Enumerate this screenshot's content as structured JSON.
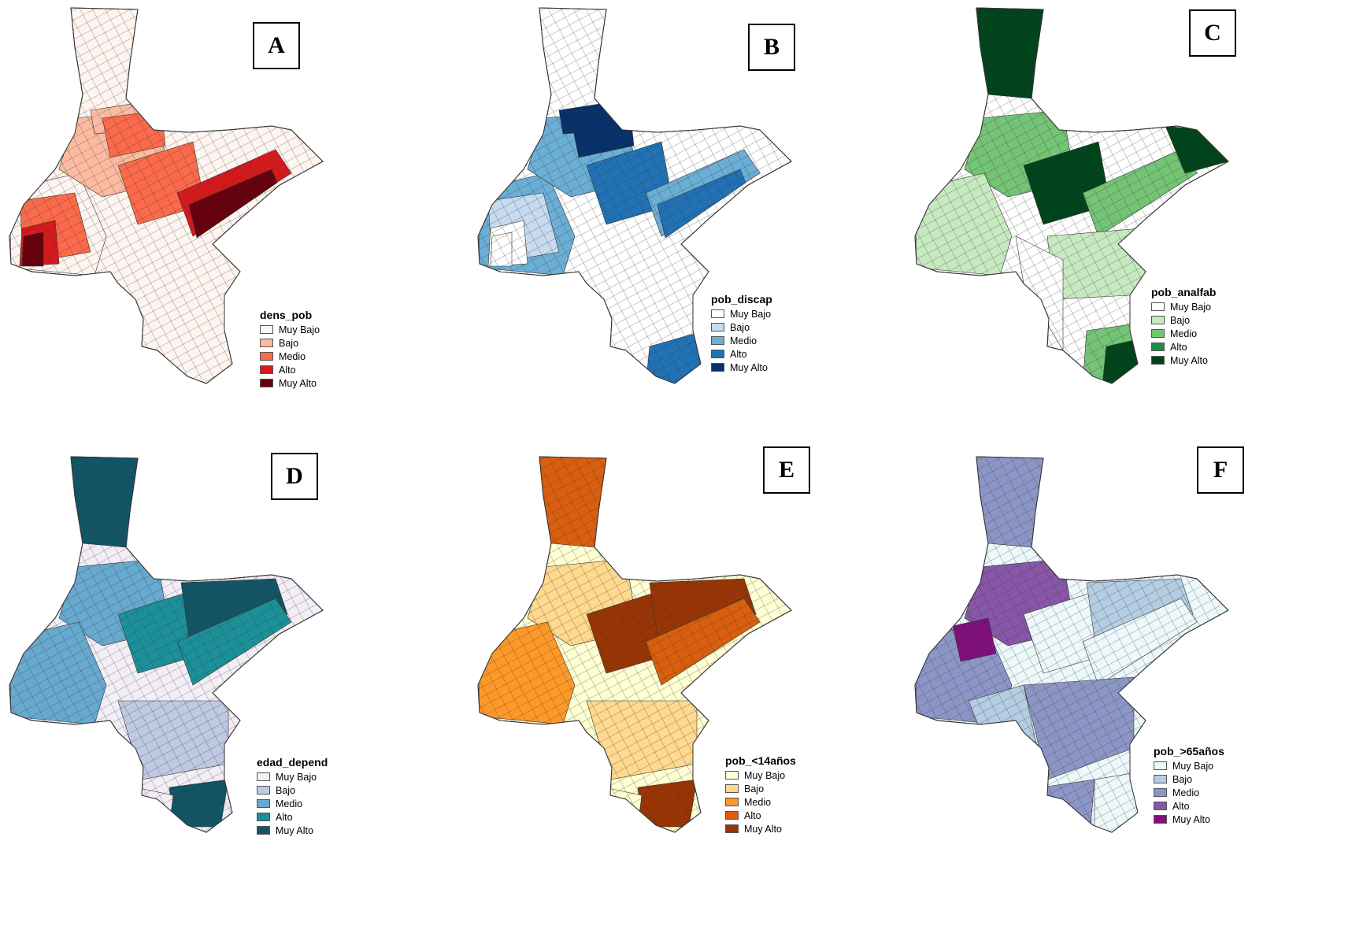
{
  "panels": [
    {
      "letter": "A",
      "legend_title": "dens_pob",
      "colors": [
        "#fff5f0",
        "#fcbba1",
        "#fb6a4a",
        "#d7191c",
        "#67000d"
      ],
      "classes": [
        "Muy Bajo",
        "Bajo",
        "Medio",
        "Alto",
        "Muy Alto"
      ]
    },
    {
      "letter": "B",
      "legend_title": "pob_discap",
      "colors": [
        "#ffffff",
        "#c6dbef",
        "#6baed6",
        "#2171b5",
        "#08306b"
      ],
      "classes": [
        "Muy Bajo",
        "Bajo",
        "Medio",
        "Alto",
        "Muy Alto"
      ]
    },
    {
      "letter": "C",
      "legend_title": "pob_analfab",
      "colors": [
        "#ffffff",
        "#c7e9c0",
        "#74c476",
        "#238b45",
        "#00441b"
      ],
      "classes": [
        "Muy Bajo",
        "Bajo",
        "Medio",
        "Alto",
        "Muy Alto"
      ]
    },
    {
      "letter": "D",
      "legend_title": "edad_depend",
      "colors": [
        "#f3eef6",
        "#bfc9e2",
        "#67a9cf",
        "#1c9099",
        "#125566"
      ],
      "classes": [
        "Muy Bajo",
        "Bajo",
        "Medio",
        "Alto",
        "Muy Alto"
      ]
    },
    {
      "letter": "E",
      "legend_title": "pob_<14años",
      "colors": [
        "#ffffd4",
        "#fed98e",
        "#fe9929",
        "#d95f0e",
        "#993404"
      ],
      "classes": [
        "Muy Bajo",
        "Bajo",
        "Medio",
        "Alto",
        "Muy Alto"
      ]
    },
    {
      "letter": "F",
      "legend_title": "pob_>65años",
      "colors": [
        "#edf8fb",
        "#b3cde3",
        "#8c96c6",
        "#8856a7",
        "#810f7c"
      ],
      "classes": [
        "Muy Bajo",
        "Bajo",
        "Medio",
        "Alto",
        "Muy Alto"
      ]
    }
  ]
}
